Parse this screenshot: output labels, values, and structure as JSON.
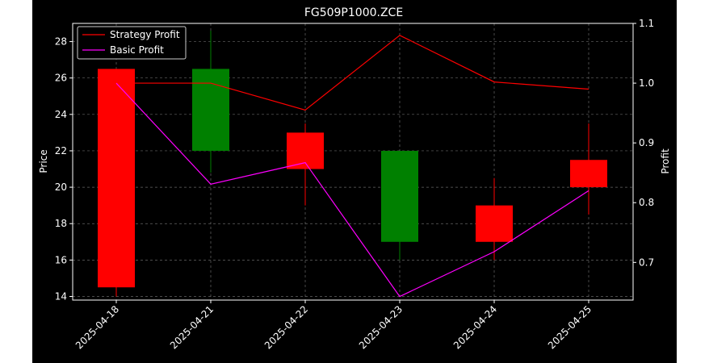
{
  "chart_data": {
    "type": "candlestick",
    "title": "FG509P1000.ZCE",
    "xlabel": "",
    "ylabel": "Price",
    "ylabel_right": "Profit",
    "categories": [
      "2025-04-18",
      "2025-04-21",
      "2025-04-22",
      "2025-04-23",
      "2025-04-24",
      "2025-04-25"
    ],
    "ylim": [
      13.8,
      29.0
    ],
    "ylim_right": [
      0.637,
      1.1
    ],
    "yticks": [
      14,
      16,
      18,
      20,
      22,
      24,
      26,
      28
    ],
    "yticks_right": [
      0.7,
      0.8,
      0.9,
      1.0,
      1.1
    ],
    "ytick_labels_right": [
      "0.7",
      "0.8",
      "0.9",
      "1.0",
      "1.1"
    ],
    "grid": true,
    "legend_position": "top-left",
    "candles": [
      {
        "open": 26.5,
        "high": 26.5,
        "low": 14.0,
        "close": 14.5
      },
      {
        "open": 22.0,
        "high": 28.6,
        "low": 20.8,
        "close": 26.5
      },
      {
        "open": 23.0,
        "high": 23.5,
        "low": 19.0,
        "close": 21.0
      },
      {
        "open": 17.0,
        "high": 22.0,
        "low": 16.0,
        "close": 22.0
      },
      {
        "open": 19.0,
        "high": 20.5,
        "low": 16.0,
        "close": 17.0
      },
      {
        "open": 21.5,
        "high": 23.5,
        "low": 18.5,
        "close": 20.0
      }
    ],
    "series": [
      {
        "name": "Strategy Profit",
        "axis": "right",
        "color": "#ff0000",
        "values": [
          1.0,
          1.0,
          0.955,
          1.08,
          1.002,
          0.99
        ]
      },
      {
        "name": "Basic Profit",
        "axis": "right",
        "color": "#ff00ff",
        "values": [
          1.0,
          0.831,
          0.867,
          0.643,
          0.718,
          0.82
        ]
      }
    ],
    "colors": {
      "up": "#008000",
      "down": "#ff0000",
      "background": "#000000",
      "grid": "#808080",
      "text": "#ffffff"
    }
  }
}
